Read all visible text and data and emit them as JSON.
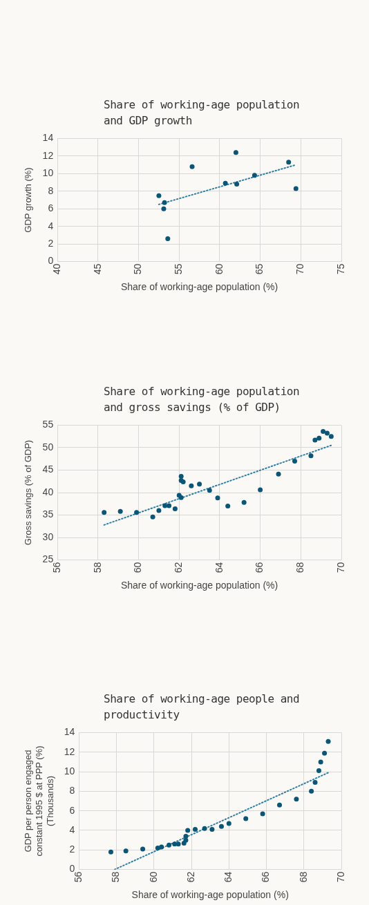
{
  "chart_data": [
    {
      "type": "scatter",
      "title": "Share of working-age population and GDP growth",
      "xlabel": "Share of working-age population (%)",
      "ylabel": "GDP growth (%)",
      "xlim": [
        40,
        75
      ],
      "xticks": [
        40,
        45,
        50,
        55,
        60,
        65,
        70,
        75
      ],
      "ylim": [
        0,
        14
      ],
      "yticks": [
        0,
        2,
        4,
        6,
        8,
        10,
        12,
        14
      ],
      "grid": true,
      "marker": "circle",
      "series": [
        {
          "color": "#0b5677",
          "x": [
            52.5,
            53.2,
            53.1,
            53.6,
            56.6,
            60.7,
            62.0,
            62.1,
            64.3,
            68.5,
            69.4
          ],
          "values": [
            7.5,
            6.7,
            6.0,
            2.6,
            10.8,
            8.9,
            12.4,
            8.8,
            9.8,
            11.3,
            8.3
          ]
        },
        {
          "type": "line",
          "marker": "none",
          "line_style": "dotted",
          "color": "#2f7ea6",
          "x": [
            52.5,
            69.4
          ],
          "values": [
            6.5,
            11.0
          ]
        }
      ]
    },
    {
      "type": "scatter",
      "title": "Share of working-age population and gross savings (% of GDP)",
      "xlabel": "Share of working-age population (%)",
      "ylabel": "Gross savings (% of GDP)",
      "xlim": [
        56,
        70
      ],
      "xticks": [
        56,
        58,
        60,
        62,
        64,
        66,
        68,
        70
      ],
      "ylim": [
        25,
        55
      ],
      "yticks": [
        25,
        30,
        35,
        40,
        45,
        50,
        55
      ],
      "grid": true,
      "marker": "circle",
      "series": [
        {
          "color": "#0b5677",
          "x": [
            58.3,
            59.1,
            59.9,
            60.7,
            61.0,
            61.3,
            61.5,
            61.8,
            62.0,
            62.1,
            62.1,
            62.1,
            62.2,
            62.6,
            63.0,
            63.5,
            63.9,
            64.4,
            65.2,
            66.0,
            66.9,
            67.7,
            68.5,
            68.7,
            68.9,
            69.1,
            69.3,
            69.5
          ],
          "values": [
            35.6,
            35.8,
            35.6,
            34.6,
            36.0,
            37.1,
            37.1,
            36.4,
            39.4,
            38.9,
            43.6,
            42.7,
            42.4,
            41.5,
            41.9,
            40.5,
            38.8,
            37.0,
            37.8,
            40.6,
            44.1,
            47.0,
            48.2,
            51.7,
            52.1,
            53.6,
            53.2,
            52.5
          ]
        },
        {
          "type": "line",
          "marker": "none",
          "line_style": "dotted",
          "color": "#2f7ea6",
          "x": [
            58.3,
            69.5
          ],
          "values": [
            32.8,
            50.5
          ]
        }
      ]
    },
    {
      "type": "scatter",
      "title": "Share of working-age people and productivity",
      "xlabel": "Share of working-age population (%)",
      "ylabel": "GDP per person engaged constant 1995 $ at PPP (%) (Thousands)",
      "xlim": [
        56,
        70
      ],
      "xticks": [
        56,
        58,
        60,
        62,
        64,
        66,
        68,
        70
      ],
      "ylim": [
        0,
        14
      ],
      "yticks": [
        0,
        2,
        4,
        6,
        8,
        10,
        12,
        14
      ],
      "grid": true,
      "marker": "circle",
      "series": [
        {
          "color": "#0b5677",
          "x": [
            57.7,
            58.5,
            59.4,
            60.2,
            60.4,
            60.8,
            61.1,
            61.3,
            61.6,
            61.7,
            61.7,
            61.8,
            62.2,
            62.7,
            63.1,
            63.6,
            64.0,
            64.9,
            65.8,
            66.7,
            67.6,
            68.4,
            68.6,
            68.8,
            68.9,
            69.1,
            69.3
          ],
          "values": [
            1.8,
            1.9,
            2.1,
            2.2,
            2.3,
            2.5,
            2.6,
            2.6,
            2.7,
            3.0,
            3.4,
            4.0,
            4.1,
            4.2,
            4.1,
            4.4,
            4.7,
            5.2,
            5.7,
            6.6,
            7.2,
            8.0,
            8.9,
            10.1,
            11.0,
            11.9,
            13.1
          ]
        },
        {
          "type": "line",
          "marker": "none",
          "line_style": "dotted",
          "color": "#2f7ea6",
          "x": [
            57.9,
            69.3
          ],
          "values": [
            0,
            9.9
          ]
        }
      ]
    }
  ]
}
